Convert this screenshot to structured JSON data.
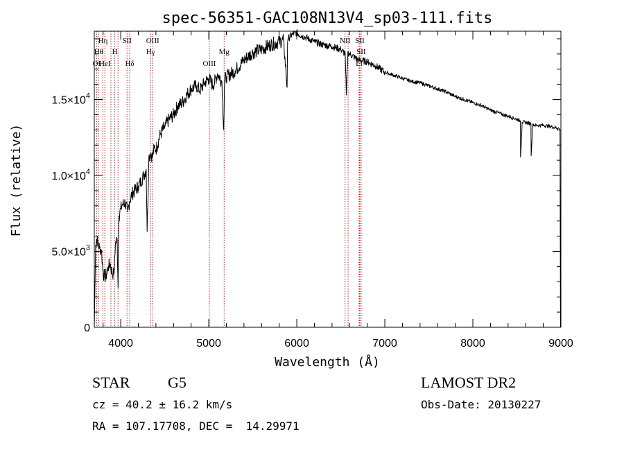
{
  "chart_data": {
    "type": "line",
    "title": "spec-56351-GAC108N13V4_sp03-111.fits",
    "xlabel": "Wavelength (Å)",
    "ylabel": "Flux (relative)",
    "xlim": [
      3700,
      9000
    ],
    "ylim": [
      0,
      19500
    ],
    "x_ticks": [
      {
        "value": 4000,
        "label": "4000"
      },
      {
        "value": 5000,
        "label": "5000"
      },
      {
        "value": 6000,
        "label": "6000"
      },
      {
        "value": 7000,
        "label": "7000"
      },
      {
        "value": 8000,
        "label": "8000"
      },
      {
        "value": 9000,
        "label": "9000"
      }
    ],
    "y_ticks": [
      {
        "value": 0,
        "label": "0"
      },
      {
        "value": 5000,
        "label": "5.0×10",
        "exp": "3"
      },
      {
        "value": 10000,
        "label": "1.0×10",
        "exp": "4"
      },
      {
        "value": 15000,
        "label": "1.5×10",
        "exp": "4"
      }
    ],
    "grid": false,
    "legend": "none",
    "series": [
      {
        "color": "#000000",
        "x": [
          3700,
          3715,
          3725,
          3740,
          3760,
          3780,
          3800,
          3820,
          3840,
          3860,
          3880,
          3900,
          3920,
          3940,
          3960,
          3970,
          3980,
          4000,
          4020,
          4050,
          4080,
          4100,
          4130,
          4160,
          4200,
          4230,
          4260,
          4290,
          4300,
          4320,
          4340,
          4360,
          4380,
          4400,
          4450,
          4500,
          4550,
          4600,
          4650,
          4700,
          4750,
          4800,
          4860,
          4900,
          4950,
          5000,
          5050,
          5100,
          5150,
          5170,
          5180,
          5200,
          5300,
          5400,
          5500,
          5600,
          5700,
          5800,
          5850,
          5890,
          5895,
          5900,
          5950,
          6000,
          6050,
          6100,
          6200,
          6300,
          6400,
          6500,
          6550,
          6563,
          6580,
          6600,
          6700,
          6800,
          6900,
          7000,
          7100,
          7200,
          7300,
          7400,
          7500,
          7600,
          7700,
          7800,
          7900,
          8000,
          8100,
          8200,
          8300,
          8400,
          8500,
          8540,
          8542,
          8560,
          8600,
          8660,
          8662,
          8680,
          8700,
          8800,
          8900,
          8980,
          8990,
          8995
        ],
        "y": [
          0,
          5400,
          5800,
          5600,
          5200,
          5100,
          3600,
          3300,
          3500,
          4000,
          4200,
          3600,
          3500,
          5500,
          5800,
          2600,
          7300,
          7800,
          8100,
          8200,
          7600,
          8300,
          8800,
          9000,
          9300,
          9600,
          10000,
          10400,
          6300,
          11200,
          11500,
          11200,
          11800,
          11700,
          12700,
          13200,
          13700,
          14000,
          14600,
          14800,
          15300,
          15700,
          15900,
          15600,
          16100,
          16400,
          15900,
          16700,
          16200,
          13000,
          16300,
          16500,
          16900,
          17600,
          18100,
          18300,
          18600,
          18800,
          18900,
          15800,
          18700,
          19000,
          19300,
          19400,
          19200,
          19100,
          18800,
          18600,
          18500,
          18300,
          18000,
          15300,
          18100,
          18000,
          17600,
          17500,
          17200,
          16800,
          16600,
          16400,
          16200,
          16100,
          15900,
          15700,
          15500,
          15200,
          15000,
          14800,
          14600,
          14300,
          14100,
          13900,
          13700,
          13600,
          11200,
          13500,
          13500,
          13400,
          11300,
          13400,
          13300,
          13300,
          13200,
          13100,
          13000,
          0
        ]
      }
    ],
    "line_markers": [
      {
        "x": 3727,
        "label": "OI",
        "row": 3
      },
      {
        "x": 3750,
        "label": "Hθ",
        "row": 2
      },
      {
        "x": 3798,
        "label": "Hη",
        "row": 1
      },
      {
        "x": 3820,
        "label": "HeI",
        "row": 3
      },
      {
        "x": 3889,
        "label": "",
        "row": 3
      },
      {
        "x": 3933,
        "label": "H",
        "row": 2
      },
      {
        "x": 3970,
        "label": "",
        "row": 3
      },
      {
        "x": 4072,
        "label": "SII",
        "row": 1
      },
      {
        "x": 4102,
        "label": "Hδ",
        "row": 3
      },
      {
        "x": 4340,
        "label": "Hγ",
        "row": 2
      },
      {
        "x": 4363,
        "label": "OIII",
        "row": 1
      },
      {
        "x": 5007,
        "label": "OIII",
        "row": 3
      },
      {
        "x": 5175,
        "label": "Mg",
        "row": 2
      },
      {
        "x": 6548,
        "label": "NII",
        "row": 1
      },
      {
        "x": 6583,
        "label": "",
        "row": 1
      },
      {
        "x": 6708,
        "label": "Li",
        "row": 3
      },
      {
        "x": 6716,
        "label": "SII",
        "row": 1
      },
      {
        "x": 6731,
        "label": "SII",
        "row": 2
      }
    ]
  },
  "info": {
    "object_class": "STAR",
    "subclass": "G5",
    "survey": "LAMOST DR2",
    "redshift": "cz = 40.2 ± 16.2 km/s",
    "obs_date": "Obs-Date: 20130227",
    "coords": "RA = 107.17708, DEC =  14.29971"
  }
}
